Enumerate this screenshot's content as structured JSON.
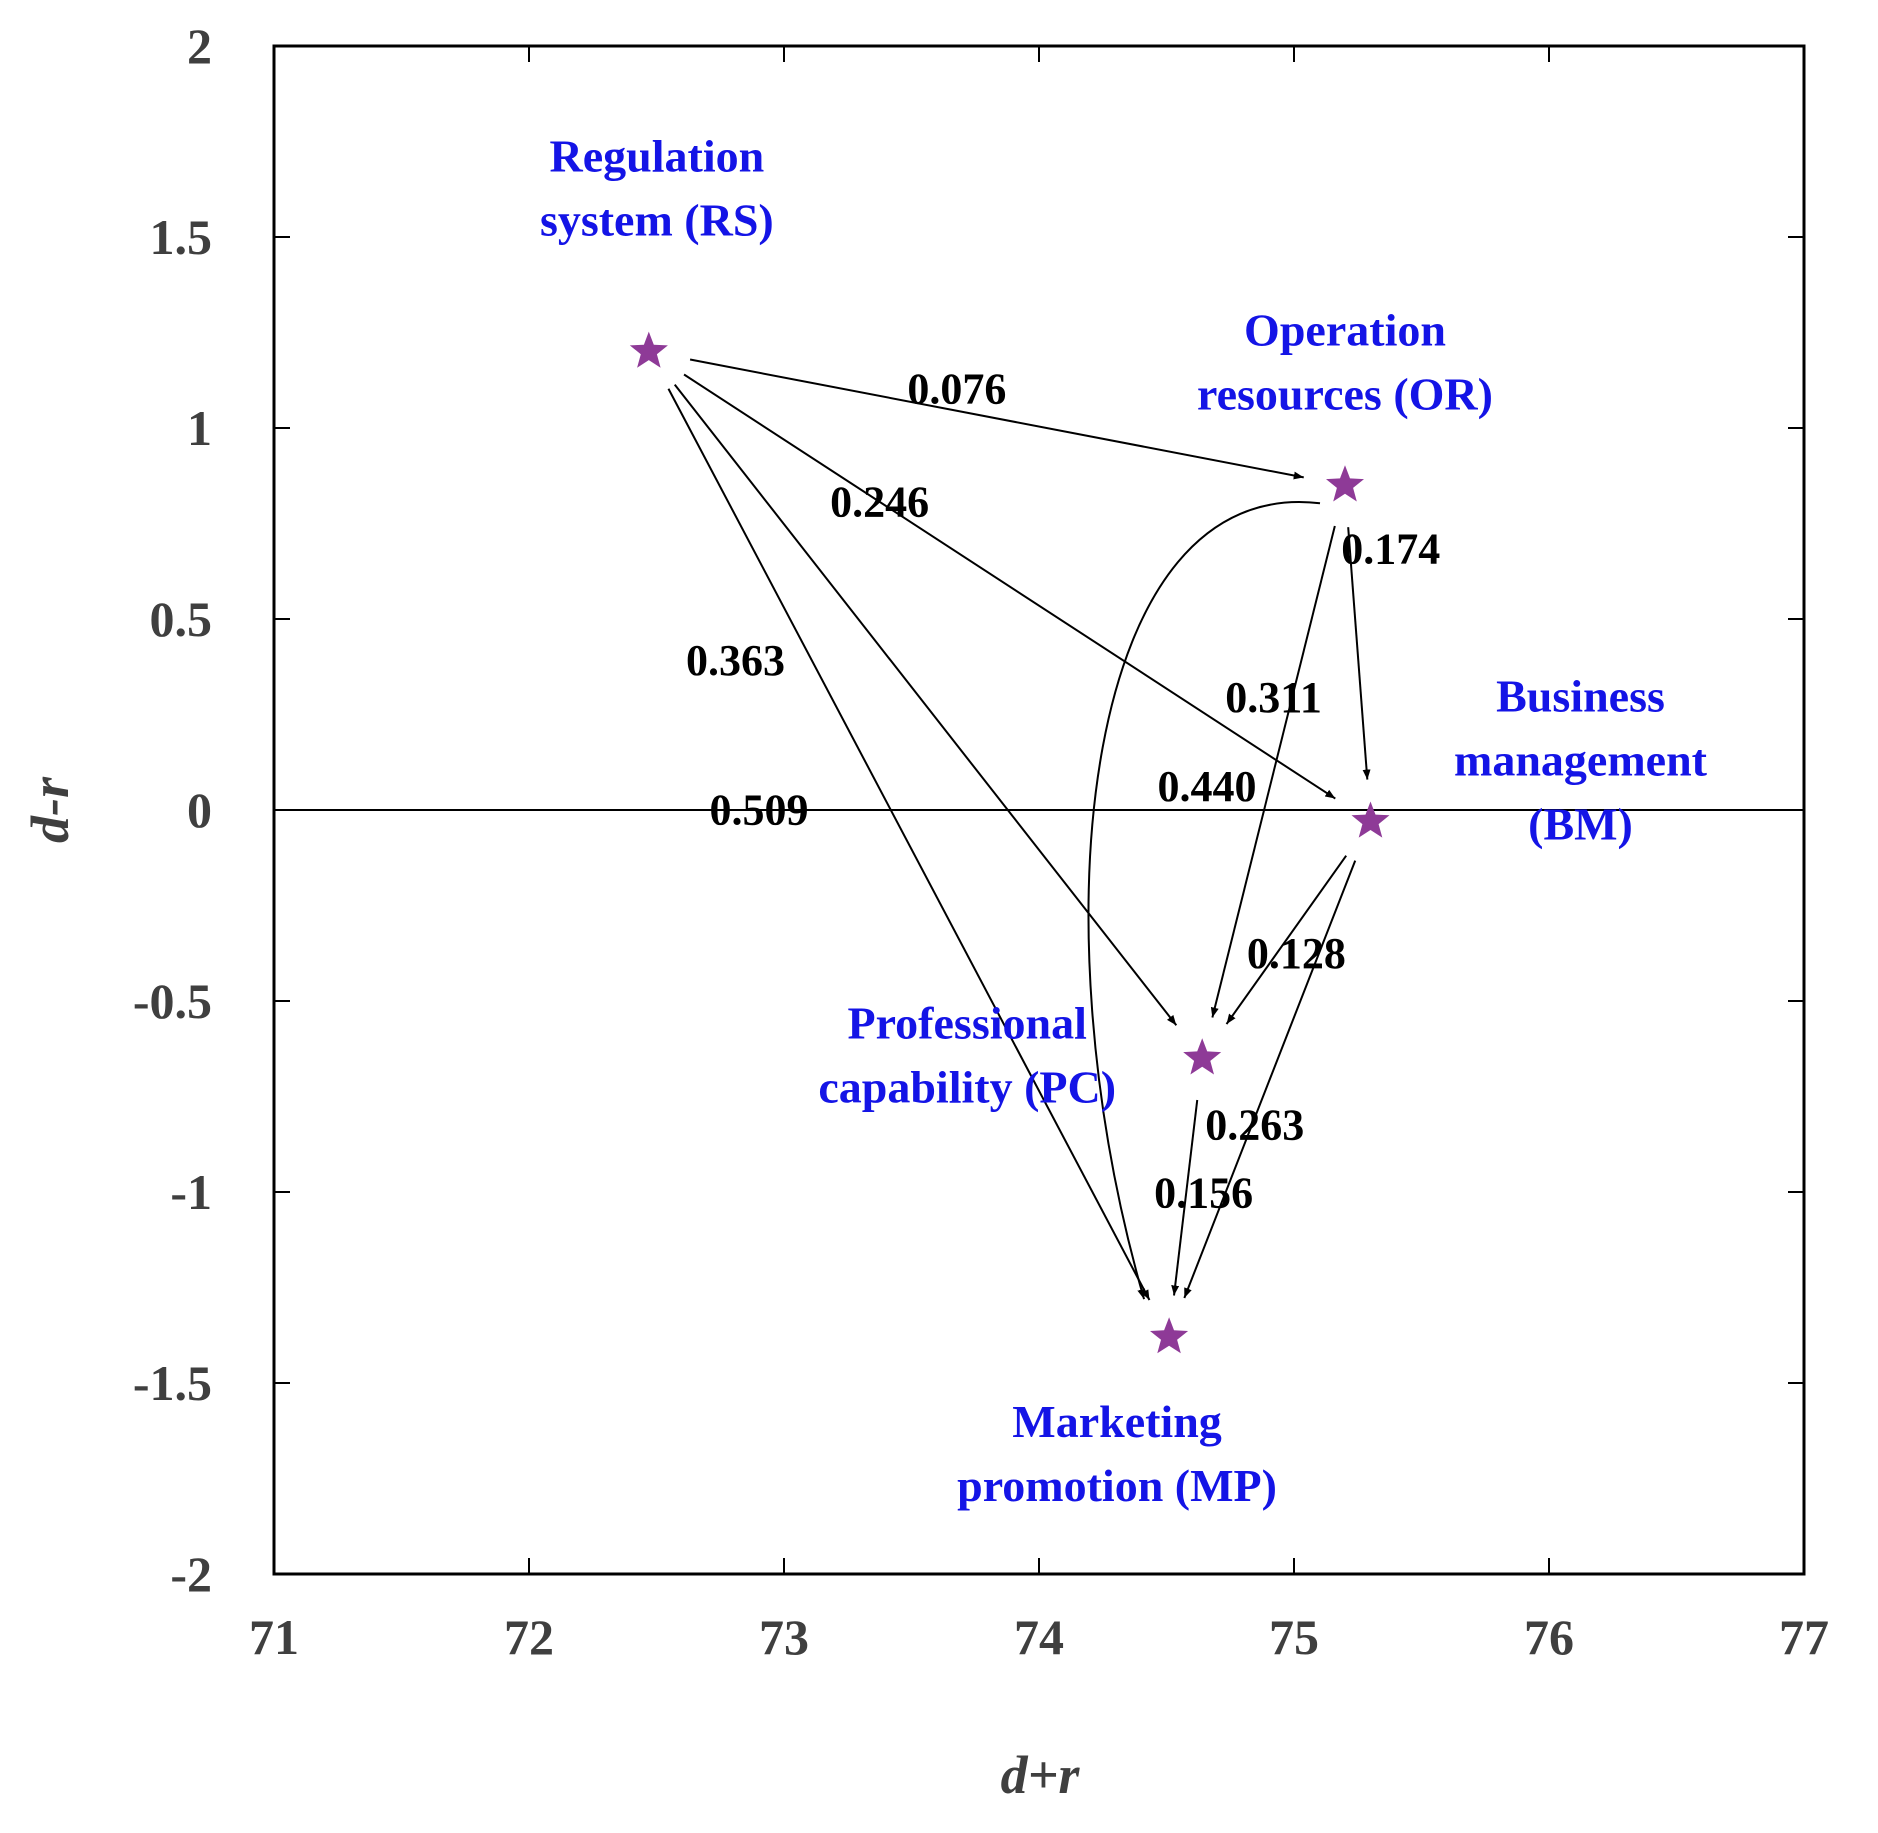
{
  "chart_data": {
    "type": "scatter",
    "title": "",
    "xlabel": "d+r",
    "ylabel": "d-r",
    "xlim": [
      71,
      77
    ],
    "ylim": [
      -2,
      2
    ],
    "xticks": [
      "71",
      "72",
      "73",
      "74",
      "75",
      "76",
      "77"
    ],
    "yticks": [
      "2",
      "1.5",
      "1",
      "0.5",
      "0",
      "-0.5",
      "-1",
      "-1.5",
      "-2"
    ],
    "zero_line": 0,
    "grid": false,
    "colors": {
      "marker": "#8e3a97",
      "label": "#1414e6",
      "edge": "#000000",
      "axis": "#000000"
    },
    "points": [
      {
        "id": "RS",
        "label_lines": [
          "Regulation",
          "system (RS)"
        ],
        "x": 72.47,
        "y": 1.2
      },
      {
        "id": "OR",
        "label_lines": [
          "Operation",
          "resources (OR)"
        ],
        "x": 75.2,
        "y": 0.85
      },
      {
        "id": "BM",
        "label_lines": [
          "Business",
          "management",
          "(BM)"
        ],
        "x": 75.3,
        "y": -0.03
      },
      {
        "id": "PC",
        "label_lines": [
          "Professional",
          "capability (PC)"
        ],
        "x": 74.64,
        "y": -0.65
      },
      {
        "id": "MP",
        "label_lines": [
          "Marketing",
          "promotion (MP)"
        ],
        "x": 74.51,
        "y": -1.38
      }
    ],
    "edges": [
      {
        "from": "RS",
        "to": "OR",
        "value": "0.076"
      },
      {
        "from": "RS",
        "to": "BM",
        "value": "0.246"
      },
      {
        "from": "RS",
        "to": "PC",
        "value": "0.363"
      },
      {
        "from": "RS",
        "to": "MP",
        "value": "0.509"
      },
      {
        "from": "OR",
        "to": "BM",
        "value": "0.174"
      },
      {
        "from": "OR",
        "to": "PC",
        "value": "0.311"
      },
      {
        "from": "OR",
        "to": "MP",
        "value": "0.440"
      },
      {
        "from": "BM",
        "to": "PC",
        "value": "0.128"
      },
      {
        "from": "BM",
        "to": "MP",
        "value": "0.263"
      },
      {
        "from": "PC",
        "to": "MP",
        "value": "0.156"
      }
    ]
  }
}
